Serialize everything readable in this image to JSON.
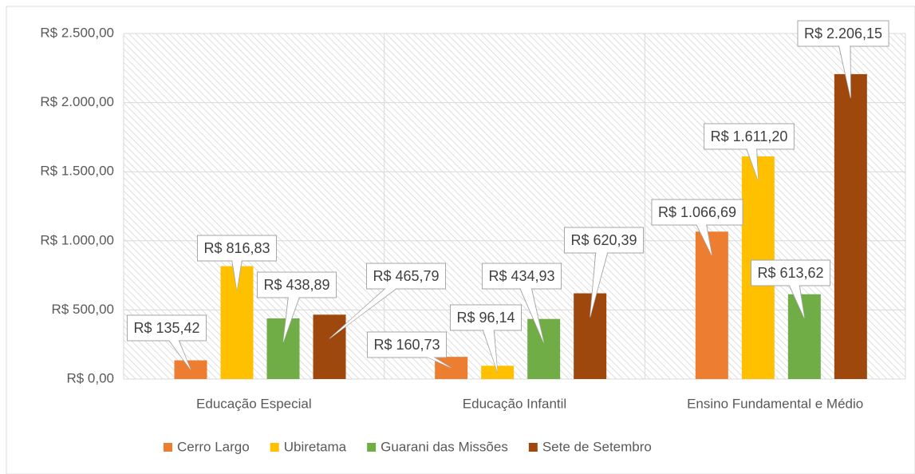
{
  "chart_data": {
    "type": "bar",
    "categories": [
      "Educação Especial",
      "Educação Infantil",
      "Ensino Fundamental e Médio"
    ],
    "series": [
      {
        "name": "Cerro Largo",
        "color": "#ED7D31",
        "values": [
          135.42,
          160.73,
          1066.69
        ],
        "value_labels": [
          "R$ 135,42",
          "R$ 160,73",
          "R$ 1.066,69"
        ]
      },
      {
        "name": "Ubiretama",
        "color": "#FFC000",
        "values": [
          816.83,
          96.14,
          1611.2
        ],
        "value_labels": [
          "R$ 816,83",
          "R$ 96,14",
          "R$ 1.611,20"
        ]
      },
      {
        "name": "Guarani das Missões",
        "color": "#70AD47",
        "values": [
          438.89,
          434.93,
          613.62
        ],
        "value_labels": [
          "R$ 438,89",
          "R$ 434,93",
          "R$ 613,62"
        ]
      },
      {
        "name": "Sete de Setembro",
        "color": "#9E480E",
        "values": [
          465.79,
          620.39,
          2206.15
        ],
        "value_labels": [
          "R$ 465,79",
          "R$ 620,39",
          "R$ 2.206,15"
        ]
      }
    ],
    "ylim": [
      0,
      2500
    ],
    "yticks": [
      {
        "value": 0,
        "label": "R$ 0,00"
      },
      {
        "value": 500,
        "label": "R$ 500,00"
      },
      {
        "value": 1000,
        "label": "R$ 1.000,00"
      },
      {
        "value": 1500,
        "label": "R$ 1.500,00"
      },
      {
        "value": 2000,
        "label": "R$ 2.000,00"
      },
      {
        "value": 2500,
        "label": "R$ 2.500,00"
      }
    ],
    "grid": true,
    "legend": "bottom"
  }
}
